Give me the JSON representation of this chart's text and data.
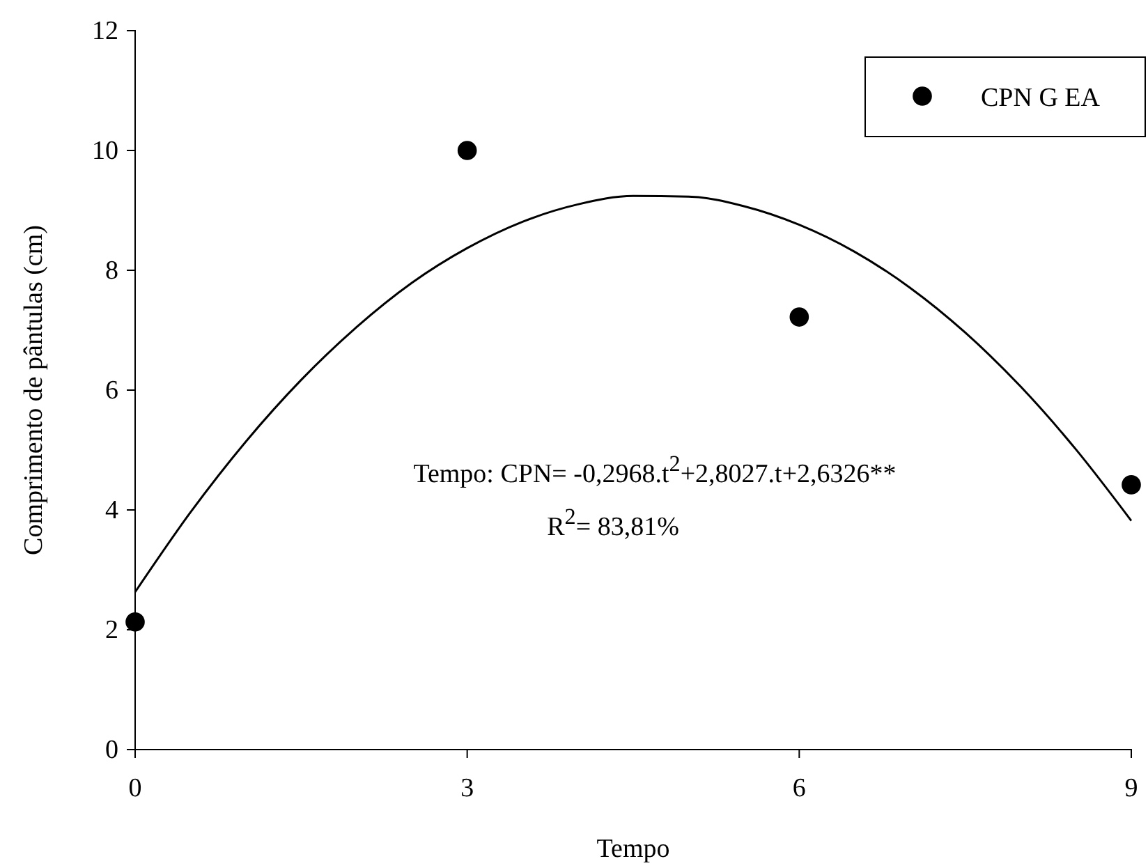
{
  "chart_data": {
    "type": "scatter",
    "xlabel": "Tempo",
    "ylabel": "Comprimento de pântulas (cm)",
    "xlim": [
      0,
      9
    ],
    "xticks": [
      0,
      3,
      6,
      9
    ],
    "ylim": [
      0,
      12
    ],
    "yticks": [
      0,
      2,
      4,
      6,
      8,
      10,
      12
    ],
    "grid": false,
    "legend": "top right",
    "marker": "circle",
    "series": [
      {
        "name": "CPN G EA",
        "color": "#000000",
        "x": [
          0,
          3,
          6,
          9
        ],
        "values": [
          2.13,
          10.0,
          7.22,
          4.42
        ]
      },
      {
        "type": "line",
        "color": "#000000",
        "line_style": "solid",
        "marker": "none",
        "x": [
          0,
          0.5,
          1,
          1.5,
          2,
          2.5,
          3,
          3.5,
          4,
          4.5,
          5,
          5.5,
          6,
          6.5,
          7,
          7.5,
          8,
          8.5,
          9
        ],
        "values": [
          2.63,
          3.96,
          5.14,
          6.17,
          7.05,
          7.79,
          8.37,
          8.81,
          9.1,
          9.24,
          9.23,
          9.07,
          8.76,
          8.31,
          7.71,
          6.96,
          6.06,
          5.01,
          3.82
        ]
      }
    ],
    "annotations": [
      "Tempo:  CPN= -0,2968.t$^{2}$+2,8027.t+2,6326**",
      "R$^{2}$= 83,81%"
    ]
  }
}
